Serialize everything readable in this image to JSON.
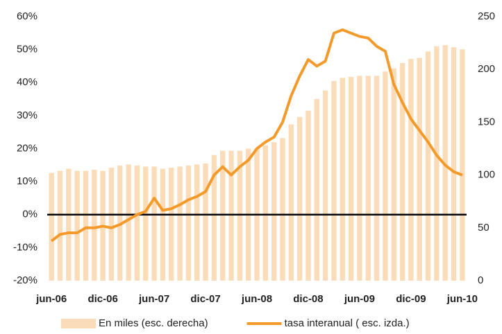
{
  "chart_data": {
    "type": "bar-line",
    "categories": [
      "jun-06",
      null,
      null,
      null,
      null,
      null,
      "dic-06",
      null,
      null,
      null,
      null,
      null,
      "jun-07",
      null,
      null,
      null,
      null,
      null,
      "dic-07",
      null,
      null,
      null,
      null,
      null,
      "jun-08",
      null,
      null,
      null,
      null,
      null,
      "dic-08",
      null,
      null,
      null,
      null,
      null,
      "jun-09",
      null,
      null,
      null,
      null,
      null,
      "dic-09",
      null,
      null,
      null,
      null,
      null,
      "jun-10"
    ],
    "series": [
      {
        "name": "En miles (esc. derecha)",
        "type": "bar",
        "axis": "y2",
        "color": "#fbdcb8",
        "values": [
          102,
          104,
          106,
          104,
          104,
          105,
          104,
          107,
          109,
          110,
          109,
          108,
          108,
          106,
          107,
          108,
          109,
          110,
          111,
          119,
          123,
          123,
          123,
          125,
          125,
          128,
          131,
          135,
          148,
          155,
          161,
          172,
          180,
          189,
          192,
          193,
          194,
          194,
          194,
          198,
          201,
          206,
          210,
          211,
          217,
          222,
          223,
          221,
          219
        ]
      },
      {
        "name": "tasa interanual ( esc. izda.)",
        "type": "line",
        "color": "#f39a2b",
        "values": [
          -8,
          -6,
          -5.5,
          -5.5,
          -4,
          -4,
          -3.5,
          -4,
          -3,
          -1.5,
          0,
          1,
          5,
          1.3,
          1.8,
          3,
          4.5,
          5.5,
          7,
          12,
          14.5,
          12,
          14.5,
          16.5,
          20,
          22,
          23.5,
          28,
          36,
          42,
          47,
          45,
          46.5,
          55,
          56,
          55,
          54,
          53.5,
          51,
          49.5,
          39.5,
          34,
          29,
          25.5,
          22,
          18,
          15,
          13,
          12
        ]
      }
    ],
    "ylim": [
      -20,
      60
    ],
    "yticks": [
      {
        "value": -20,
        "label": "-20%"
      },
      {
        "value": -10,
        "label": "-10%"
      },
      {
        "value": 0,
        "label": "0%"
      },
      {
        "value": 10,
        "label": "10%"
      },
      {
        "value": 20,
        "label": "20%"
      },
      {
        "value": 30,
        "label": "30%"
      },
      {
        "value": 40,
        "label": "40%"
      },
      {
        "value": 50,
        "label": "50%"
      },
      {
        "value": 60,
        "label": "60%"
      }
    ],
    "y2lim": [
      0,
      250
    ],
    "y2ticks": [
      0,
      50,
      100,
      150,
      200,
      250
    ],
    "legend": "bottom"
  }
}
